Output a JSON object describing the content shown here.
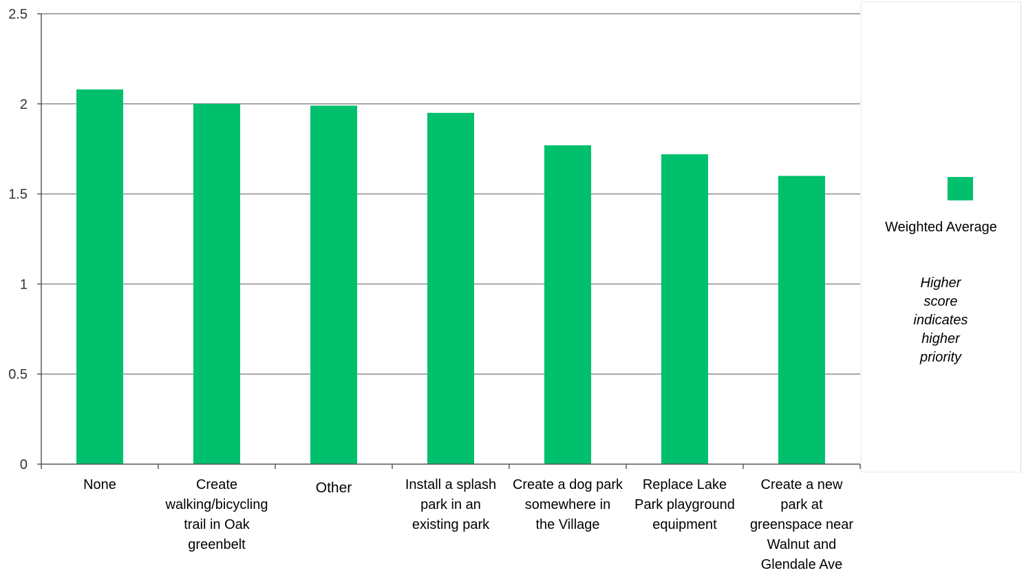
{
  "chart_data": {
    "type": "bar",
    "categories": [
      "None",
      "Create walking/bicycling trail in Oak greenbelt",
      "Other",
      "Install a splash park in an existing park",
      "Create a dog park somewhere in the Village",
      "Replace Lake Park playground equipment",
      "Create a new park at greenspace near Walnut and Glendale Ave"
    ],
    "category_lines": [
      [
        "None"
      ],
      [
        "Create",
        "walking/bicycling",
        "trail in Oak",
        "greenbelt"
      ],
      [
        "Other"
      ],
      [
        "Install a splash",
        "park in an",
        "existing park"
      ],
      [
        "Create a dog park",
        "somewhere in",
        "the Village"
      ],
      [
        "Replace Lake",
        "Park playground",
        "equipment"
      ],
      [
        "Create a new",
        "park at",
        "greenspace near",
        "Walnut and",
        "Glendale Ave"
      ]
    ],
    "series": [
      {
        "name": "Weighted Average",
        "values": [
          2.08,
          2.0,
          1.99,
          1.95,
          1.77,
          1.72,
          1.6
        ]
      }
    ],
    "ylim": [
      0,
      2.5
    ],
    "yticks": [
      "0",
      "0.5",
      "1",
      "1.5",
      "2",
      "2.5"
    ],
    "grid": true,
    "legend_position": "right",
    "legend_note": "Higher score indicates higher priority",
    "bar_color": "#00c06d",
    "title": "",
    "xlabel": "",
    "ylabel": ""
  }
}
